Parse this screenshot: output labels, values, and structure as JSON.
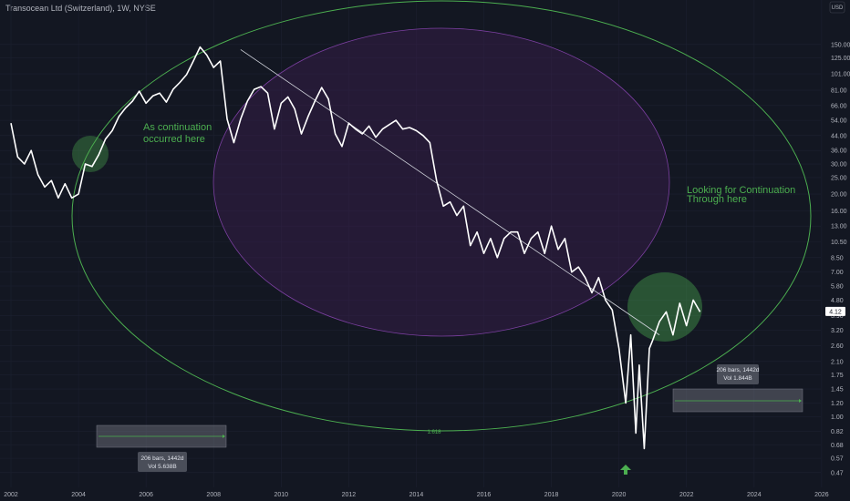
{
  "header": {
    "title": "Transocean Ltd (Switzerland), 1W, NYSE"
  },
  "colors": {
    "background": "#131722",
    "price_line": "#ffffff",
    "accent_green": "#4caf50",
    "purple": "#7b3fa0",
    "grid": "#1e222d",
    "axis_text": "#b2b5be"
  },
  "chart_data": {
    "type": "line",
    "title": "Transocean Ltd (Switzerland), 1W, NYSE",
    "yscale": "log",
    "currency": "USD",
    "ylim": [
      0.4,
      230
    ],
    "xlim": [
      2002.0,
      2026.3
    ],
    "y_ticks": [
      "150.00",
      "125.00",
      "101.00",
      "81.00",
      "66.00",
      "54.00",
      "44.00",
      "36.00",
      "30.00",
      "25.00",
      "20.00",
      "16.00",
      "13.00",
      "10.50",
      "8.50",
      "7.00",
      "5.80",
      "4.80",
      "3.90",
      "3.20",
      "2.60",
      "2.10",
      "1.75",
      "1.45",
      "1.20",
      "1.00",
      "0.82",
      "0.68",
      "0.57",
      "0.47"
    ],
    "x_ticks": [
      "2002",
      "2004",
      "2006",
      "2008",
      "2010",
      "2012",
      "2014",
      "2016",
      "2018",
      "2020",
      "2022",
      "2024",
      "2026"
    ],
    "last_price": "4.12",
    "series": [
      {
        "x": [
          2002.0,
          2002.2,
          2002.4,
          2002.6,
          2002.8,
          2003.0,
          2003.2,
          2003.4,
          2003.6,
          2003.8,
          2004.0,
          2004.2,
          2004.4,
          2004.6,
          2004.8,
          2005.0,
          2005.2,
          2005.4,
          2005.6,
          2005.8,
          2006.0,
          2006.2,
          2006.4,
          2006.6,
          2006.8,
          2007.0,
          2007.2,
          2007.4,
          2007.6,
          2007.8,
          2008.0,
          2008.2,
          2008.4,
          2008.6,
          2008.8,
          2009.0,
          2009.2,
          2009.4,
          2009.6,
          2009.8,
          2010.0,
          2010.2,
          2010.4,
          2010.6,
          2010.8,
          2011.0,
          2011.2,
          2011.4,
          2011.6,
          2011.8,
          2012.0,
          2012.2,
          2012.4,
          2012.6,
          2012.8,
          2013.0,
          2013.2,
          2013.4,
          2013.6,
          2013.8,
          2014.0,
          2014.2,
          2014.4,
          2014.6,
          2014.8,
          2015.0,
          2015.2,
          2015.4,
          2015.6,
          2015.8,
          2016.0,
          2016.2,
          2016.4,
          2016.6,
          2016.8,
          2017.0,
          2017.2,
          2017.4,
          2017.6,
          2017.8,
          2018.0,
          2018.2,
          2018.4,
          2018.6,
          2018.8,
          2019.0,
          2019.2,
          2019.4,
          2019.6,
          2019.8,
          2020.0,
          2020.2,
          2020.35,
          2020.5,
          2020.6,
          2020.75,
          2020.9,
          2021.0,
          2021.2,
          2021.4,
          2021.6,
          2021.8,
          2022.0,
          2022.2,
          2022.4
        ],
        "values": [
          52,
          33,
          30,
          36,
          26,
          22,
          24,
          19,
          23,
          19,
          20,
          30,
          29,
          34,
          42,
          47,
          57,
          64,
          70,
          80,
          68,
          75,
          78,
          69,
          82,
          90,
          100,
          120,
          145,
          130,
          110,
          120,
          55,
          40,
          55,
          70,
          82,
          85,
          78,
          48,
          68,
          74,
          63,
          45,
          57,
          70,
          84,
          72,
          45,
          38,
          52,
          48,
          45,
          50,
          43,
          48,
          51,
          54,
          48,
          49,
          47,
          44,
          40,
          24,
          17,
          18,
          15,
          17,
          10,
          12,
          9,
          11,
          8.5,
          11,
          12,
          12,
          9,
          11,
          12,
          9,
          13,
          9.5,
          11,
          7,
          7.5,
          6.5,
          5.3,
          6.5,
          4.8,
          4.2,
          2.5,
          1.2,
          3.0,
          0.8,
          2.0,
          0.65,
          2.5,
          2.8,
          3.6,
          4.1,
          3.0,
          4.6,
          3.4,
          4.8,
          4.1
        ]
      }
    ],
    "annotations": [
      {
        "text_lines": [
          "As continuation",
          "occurred here"
        ]
      },
      {
        "text_lines": [
          "Looking for Continuation",
          "Through here"
        ]
      },
      {
        "text": "1.618"
      }
    ],
    "range_boxes": [
      {
        "bars": "206 bars, 1442d",
        "vol": "Vol 5.638B"
      },
      {
        "bars": "206 bars, 1442d",
        "vol": "Vol 1.844B"
      }
    ],
    "trendline": {
      "start": [
        2008.8,
        140
      ],
      "end": [
        2021.2,
        3.0
      ]
    },
    "marker": "up-arrow-icon"
  }
}
